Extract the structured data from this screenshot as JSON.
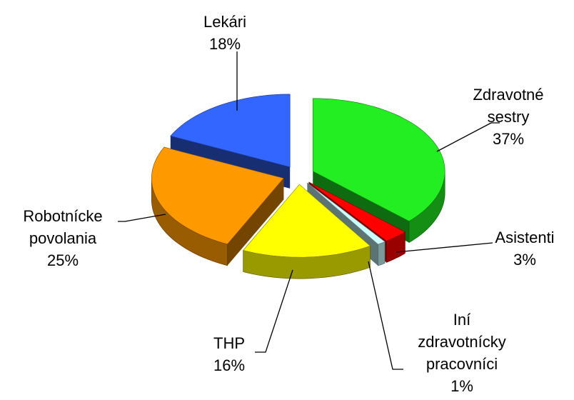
{
  "chart_data": {
    "type": "pie",
    "categories": [
      "Zdravotné sestry",
      "Asistenti",
      "Iní zdravotnícky pracovníci",
      "THP",
      "Robotnícke povolania",
      "Lekári"
    ],
    "values": [
      37,
      3,
      1,
      16,
      25,
      18
    ],
    "value_labels": [
      "37%",
      "3%",
      "1%",
      "16%",
      "25%",
      "18%"
    ],
    "colors": [
      "#22ee22",
      "#ff0000",
      "#ccffff",
      "#ffff00",
      "#ff9900",
      "#3366ff"
    ],
    "exploded": true,
    "three_d": true
  }
}
